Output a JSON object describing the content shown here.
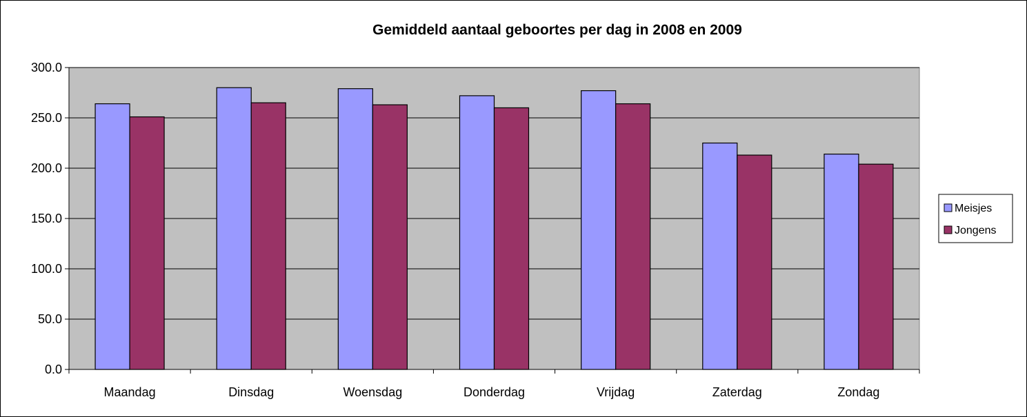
{
  "chart_data": {
    "type": "bar",
    "title": "Gemiddeld aantaal geboortes per dag in 2008 en 2009",
    "xlabel": "",
    "ylabel": "",
    "categories": [
      "Maandag",
      "Dinsdag",
      "Woensdag",
      "Donderdag",
      "Vrijdag",
      "Zaterdag",
      "Zondag"
    ],
    "series": [
      {
        "name": "Meisjes",
        "color": "#9999ff",
        "values": [
          264,
          280,
          279,
          272,
          277,
          225,
          214
        ]
      },
      {
        "name": "Jongens",
        "color": "#993366",
        "values": [
          251,
          265,
          263,
          260,
          264,
          213,
          204
        ]
      }
    ],
    "ylim": [
      0,
      300
    ],
    "yticks": [
      "0.0",
      "50.0",
      "100.0",
      "150.0",
      "200.0",
      "250.0",
      "300.0"
    ],
    "grid": true,
    "plot_background": "#c0c0c0",
    "legend_position": "right"
  }
}
